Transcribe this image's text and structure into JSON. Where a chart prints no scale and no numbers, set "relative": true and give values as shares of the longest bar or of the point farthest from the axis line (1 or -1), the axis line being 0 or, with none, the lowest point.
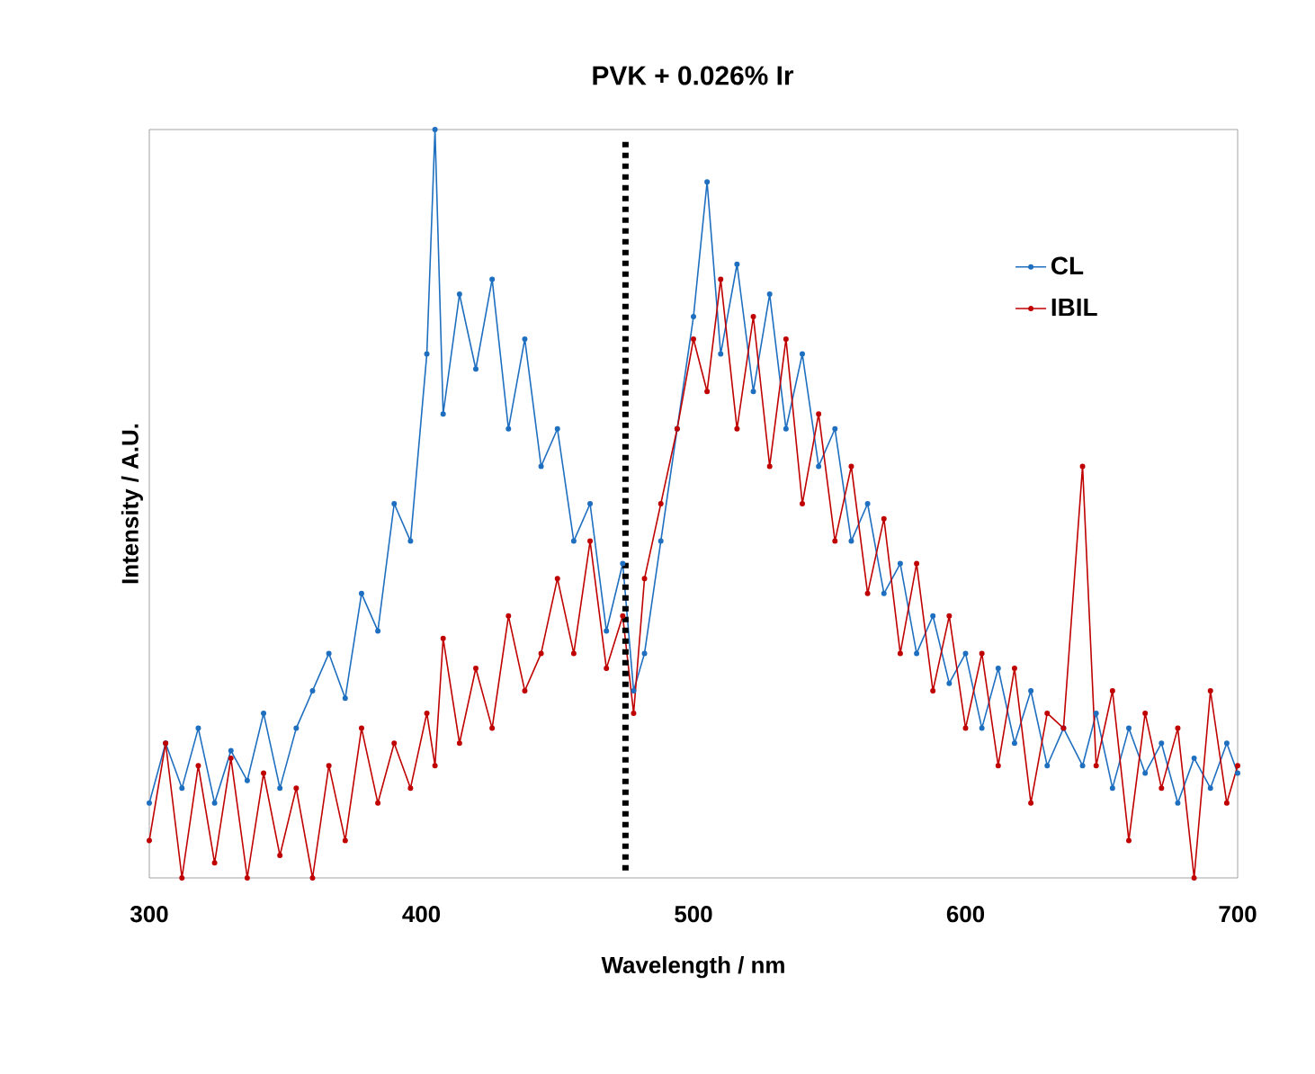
{
  "chart_data": {
    "type": "line",
    "title": "PVK + 0.026% Ir",
    "xlabel": "Wavelength / nm",
    "ylabel": "Intensity / A.U.",
    "relative": true,
    "xlim": [
      300,
      700
    ],
    "xticks": [
      300,
      400,
      500,
      600,
      700
    ],
    "tick_labels": "x",
    "grid": false,
    "legend": "top right",
    "marker": "circle",
    "line_style": "solid",
    "x": [
      300,
      306,
      312,
      318,
      324,
      330,
      336,
      342,
      348,
      354,
      360,
      366,
      372,
      378,
      384,
      390,
      396,
      402,
      405,
      408,
      414,
      420,
      426,
      432,
      438,
      444,
      450,
      456,
      462,
      468,
      474,
      478,
      482,
      488,
      494,
      500,
      505,
      510,
      516,
      522,
      528,
      534,
      540,
      546,
      552,
      558,
      564,
      570,
      576,
      582,
      588,
      594,
      600,
      606,
      612,
      618,
      624,
      630,
      636,
      643,
      648,
      654,
      660,
      666,
      672,
      678,
      684,
      690,
      696,
      700
    ],
    "series": [
      {
        "name": "CL",
        "color": "#1f6fc0",
        "values": [
          0.1,
          0.18,
          0.12,
          0.2,
          0.1,
          0.17,
          0.13,
          0.22,
          0.12,
          0.2,
          0.25,
          0.3,
          0.24,
          0.38,
          0.33,
          0.5,
          0.45,
          0.7,
          1.0,
          0.62,
          0.78,
          0.68,
          0.8,
          0.6,
          0.72,
          0.55,
          0.6,
          0.45,
          0.5,
          0.33,
          0.42,
          0.25,
          0.3,
          0.45,
          0.6,
          0.75,
          0.93,
          0.7,
          0.82,
          0.65,
          0.78,
          0.6,
          0.7,
          0.55,
          0.6,
          0.45,
          0.5,
          0.38,
          0.42,
          0.3,
          0.35,
          0.26,
          0.3,
          0.2,
          0.28,
          0.18,
          0.25,
          0.15,
          0.2,
          0.15,
          0.22,
          0.12,
          0.2,
          0.14,
          0.18,
          0.1,
          0.16,
          0.12,
          0.18,
          0.14
        ]
      },
      {
        "name": "IBIL",
        "color": "#c00000",
        "values": [
          0.05,
          0.18,
          0.0,
          0.15,
          0.02,
          0.16,
          0.0,
          0.14,
          0.03,
          0.12,
          0.0,
          0.15,
          0.05,
          0.2,
          0.1,
          0.18,
          0.12,
          0.22,
          0.15,
          0.32,
          0.18,
          0.28,
          0.2,
          0.35,
          0.25,
          0.3,
          0.4,
          0.3,
          0.45,
          0.28,
          0.35,
          0.22,
          0.4,
          0.5,
          0.6,
          0.72,
          0.65,
          0.8,
          0.6,
          0.75,
          0.55,
          0.72,
          0.5,
          0.62,
          0.45,
          0.55,
          0.38,
          0.48,
          0.3,
          0.42,
          0.25,
          0.35,
          0.2,
          0.3,
          0.15,
          0.28,
          0.1,
          0.22,
          0.2,
          0.55,
          0.15,
          0.25,
          0.05,
          0.22,
          0.12,
          0.2,
          0.0,
          0.25,
          0.1,
          0.15
        ]
      }
    ],
    "ref_lines": [
      {
        "axis": "x",
        "value": 475,
        "color": "#000000",
        "line_style": "dotted"
      }
    ]
  }
}
